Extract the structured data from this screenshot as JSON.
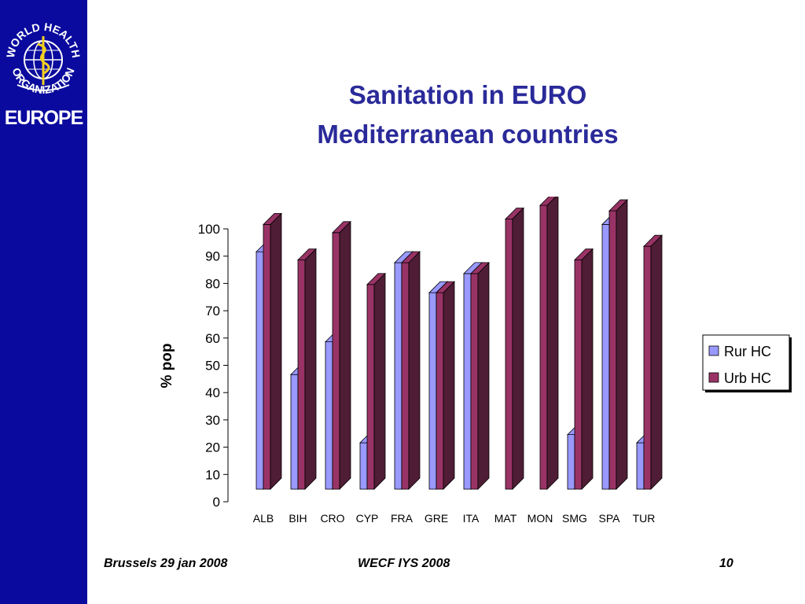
{
  "sidebar": {
    "logo_text": "WORLD HEALTH ORGANIZATION",
    "region": "EUROPE"
  },
  "title": {
    "line1": "Sanitation in EURO",
    "line2": "Mediterranean countries"
  },
  "colors": {
    "sidebar": "#0a0a9e",
    "title": "#2a2a9a",
    "rur_face": "#9999ff",
    "rur_side": "#5050c0",
    "urb_face": "#993366",
    "urb_side": "#4f1d35"
  },
  "chart_data": {
    "type": "bar",
    "title": "",
    "xlabel": "",
    "ylabel": "% pop",
    "ylim": [
      0,
      100
    ],
    "yticks": [
      0,
      10,
      20,
      30,
      40,
      50,
      60,
      70,
      80,
      90,
      100
    ],
    "categories": [
      "ALB",
      "BIH",
      "CRO",
      "CYP",
      "FRA",
      "GRE",
      "ITA",
      "MAT",
      "MON",
      "SMG",
      "SPA",
      "TUR"
    ],
    "series": [
      {
        "name": "Rur HC",
        "values": [
          87,
          42,
          54,
          17,
          83,
          72,
          79,
          0,
          0,
          20,
          97,
          17
        ]
      },
      {
        "name": "Urb HC",
        "values": [
          97,
          84,
          94,
          75,
          83,
          72,
          79,
          99,
          104,
          84,
          102,
          89
        ]
      }
    ],
    "legend_position": "right",
    "style": "3d-clustered"
  },
  "footer": {
    "left": "Brussels 29 jan 2008",
    "center": "WECF IYS 2008",
    "right": "10"
  }
}
